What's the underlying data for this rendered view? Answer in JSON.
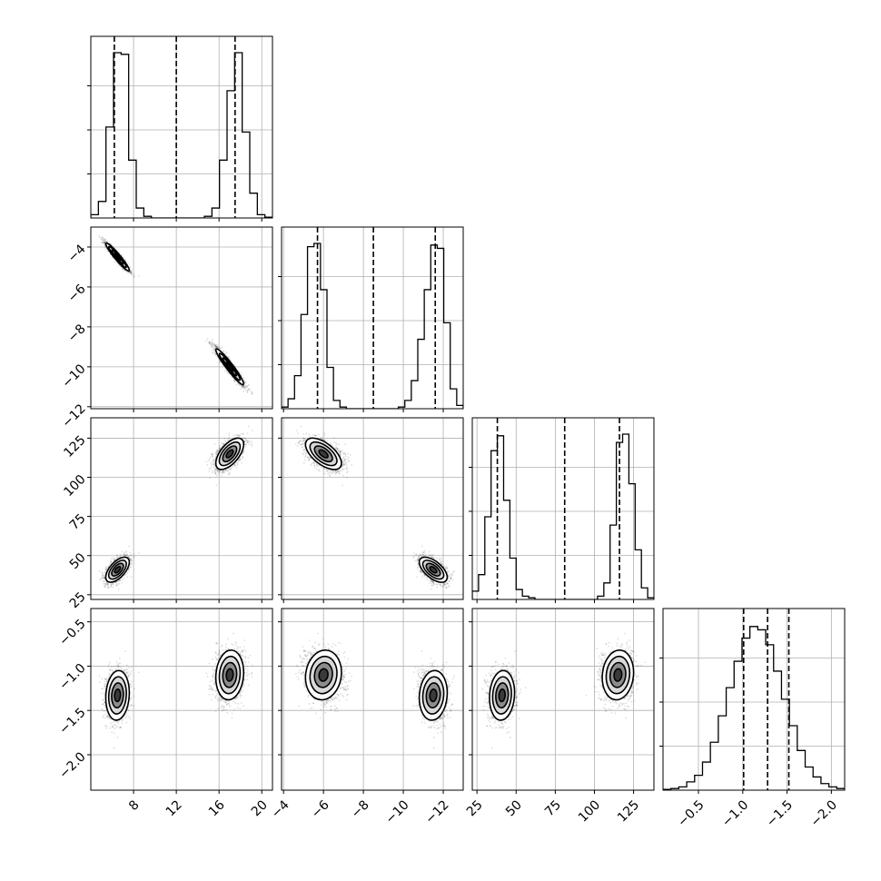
{
  "chart_data": {
    "type": "corner",
    "parameters": [
      "p0",
      "p1",
      "p2",
      "p3"
    ],
    "ranges": [
      [
        4.0,
        21.0
      ],
      [
        -12.1,
        -3.0
      ],
      [
        22,
        138
      ],
      [
        -2.4,
        -0.35
      ]
    ],
    "ticks": [
      [
        8,
        12,
        16,
        20
      ],
      [
        -4,
        -6,
        -8,
        -10,
        -12
      ],
      [
        25,
        50,
        75,
        100,
        125
      ],
      [
        -0.5,
        -1.0,
        -1.5,
        -2.0
      ]
    ],
    "tick_labels": {
      "x": [
        [
          "8",
          "12",
          "16",
          "20"
        ],
        [
          "−12",
          "−10",
          "−8",
          "−6",
          "−4"
        ],
        [
          "25",
          "50",
          "75",
          "100",
          "125"
        ],
        [
          "−2.0",
          "−1.5",
          "−1.0",
          "−0.5"
        ]
      ],
      "y": [
        [],
        [
          "−4",
          "−6",
          "−8",
          "−10",
          "−12"
        ],
        [
          "25",
          "50",
          "75",
          "100",
          "125"
        ],
        [
          "−0.5",
          "−1.0",
          "−1.5",
          "−2.0"
        ]
      ]
    },
    "quantiles": [
      [
        6.2,
        12.0,
        17.5
      ],
      [
        -10.3,
        -7.5,
        -4.4
      ],
      [
        38,
        81,
        116
      ],
      [
        -1.49,
        -1.22,
        -0.98
      ]
    ],
    "histograms": [
      {
        "edges_start": 4.0,
        "edges_end": 21.0,
        "counts": [
          0.02,
          0.1,
          0.55,
          1.0,
          0.99,
          0.35,
          0.06,
          0.01,
          0,
          0,
          0,
          0,
          0,
          0,
          0,
          0.01,
          0.06,
          0.35,
          0.77,
          1.0,
          0.52,
          0.15,
          0.02,
          0.005
        ]
      },
      {
        "edges_start": -12.1,
        "edges_end": -3.0,
        "counts": [
          0.01,
          0.06,
          0.2,
          0.57,
          0.98,
          1.0,
          0.72,
          0.25,
          0.05,
          0.01,
          0,
          0,
          0,
          0,
          0,
          0,
          0,
          0,
          0.01,
          0.05,
          0.17,
          0.42,
          0.72,
          0.99,
          0.97,
          0.52,
          0.12,
          0.02
        ]
      },
      {
        "edges_start": 22,
        "edges_end": 138,
        "counts": [
          0.05,
          0.15,
          0.5,
          0.9,
          0.99,
          0.6,
          0.25,
          0.06,
          0.02,
          0.01,
          0,
          0,
          0,
          0,
          0,
          0,
          0,
          0,
          0,
          0,
          0.02,
          0.1,
          0.45,
          0.95,
          1.0,
          0.7,
          0.3,
          0.07,
          0.01
        ]
      },
      {
        "edges_start": -2.4,
        "edges_end": -0.35,
        "counts": [
          0.005,
          0.01,
          0.02,
          0.05,
          0.09,
          0.17,
          0.29,
          0.45,
          0.62,
          0.78,
          0.92,
          0.99,
          0.97,
          0.88,
          0.72,
          0.55,
          0.39,
          0.24,
          0.14,
          0.08,
          0.04,
          0.02,
          0.01
        ]
      }
    ],
    "modes": [
      {
        "mean": [
          6.5,
          -4.5,
          41,
          -1.33
        ],
        "sd": [
          0.55,
          0.35,
          4.0,
          0.14
        ],
        "corr": [
          [
            1,
            -0.95,
            0.6,
            0.1
          ],
          [
            -0.95,
            1,
            -0.6,
            -0.1
          ],
          [
            0.6,
            -0.6,
            1,
            0.1
          ],
          [
            0.1,
            -0.1,
            0.1,
            1
          ]
        ],
        "weight": 0.5
      },
      {
        "mean": [
          17.0,
          -10.0,
          115,
          -1.1
        ],
        "sd": [
          0.65,
          0.45,
          5.0,
          0.14
        ],
        "corr": [
          [
            1,
            -0.95,
            0.6,
            0.1
          ],
          [
            -0.95,
            1,
            -0.6,
            -0.1
          ],
          [
            0.6,
            -0.6,
            1,
            0.1
          ],
          [
            0.1,
            -0.1,
            0.1,
            1
          ]
        ],
        "weight": 0.5
      }
    ],
    "grid": true,
    "legend": "none",
    "title": "",
    "xlabel": "",
    "ylabel": ""
  }
}
